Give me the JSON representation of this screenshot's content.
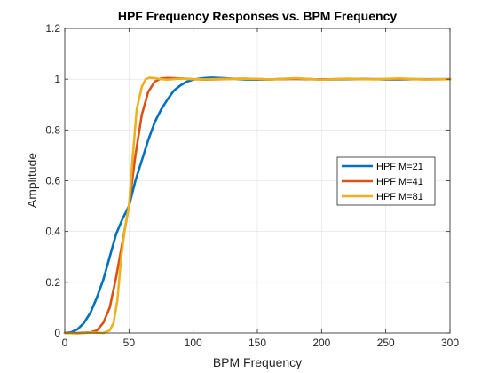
{
  "chart_data": {
    "type": "line",
    "title": "HPF Frequency Responses vs. BPM Frequency",
    "xlabel": "BPM Frequency",
    "ylabel": "Amplitude",
    "xlim": [
      0,
      300
    ],
    "ylim": [
      0,
      1.2
    ],
    "xticks": [
      0,
      50,
      100,
      150,
      200,
      250,
      300
    ],
    "xtick_labels": [
      "0",
      "50",
      "100",
      "150",
      "200",
      "250",
      "300"
    ],
    "yticks": [
      0,
      0.2,
      0.4,
      0.6,
      0.8,
      1.0,
      1.2
    ],
    "ytick_labels": [
      "0",
      "0.2",
      "0.4",
      "0.6",
      "0.8",
      "1",
      "1.2"
    ],
    "grid": true,
    "legend_position": "right",
    "series": [
      {
        "name": "HPF M=21",
        "color": "#0072BD",
        "x": [
          0,
          5,
          10,
          15,
          20,
          25,
          30,
          35,
          40,
          45,
          50,
          55,
          60,
          65,
          70,
          75,
          80,
          85,
          90,
          95,
          100,
          105,
          110,
          115,
          120,
          130,
          140,
          150,
          160,
          170,
          180,
          190,
          200,
          210,
          220,
          230,
          240,
          250,
          260,
          270,
          280,
          290,
          300
        ],
        "y": [
          0.0,
          0.003,
          0.015,
          0.04,
          0.08,
          0.14,
          0.21,
          0.3,
          0.39,
          0.45,
          0.5,
          0.6,
          0.68,
          0.76,
          0.83,
          0.88,
          0.92,
          0.955,
          0.975,
          0.99,
          0.998,
          1.002,
          1.005,
          1.006,
          1.005,
          1.002,
          0.999,
          0.998,
          0.999,
          1.001,
          1.001,
          1.0,
          0.999,
          0.999,
          1.0,
          1.001,
          1.0,
          0.999,
          0.999,
          1.0,
          1.0,
          1.0,
          1.0
        ]
      },
      {
        "name": "HPF M=41",
        "color": "#D95319",
        "x": [
          0,
          10,
          20,
          25,
          30,
          35,
          40,
          45,
          50,
          55,
          60,
          65,
          70,
          75,
          80,
          90,
          100,
          110,
          120,
          140,
          160,
          180,
          200,
          220,
          240,
          260,
          280,
          300
        ],
        "y": [
          0.0,
          0.0,
          0.003,
          0.01,
          0.04,
          0.1,
          0.22,
          0.36,
          0.5,
          0.7,
          0.86,
          0.95,
          0.99,
          1.003,
          1.005,
          1.003,
          1.0,
          0.998,
          1.0,
          1.002,
          0.999,
          1.001,
          0.999,
          1.001,
          1.0,
          1.001,
          0.999,
          1.0
        ]
      },
      {
        "name": "HPF M=81",
        "color": "#EDB120",
        "x": [
          0,
          10,
          20,
          30,
          35,
          38,
          41,
          44,
          47,
          50,
          53,
          56,
          60,
          63,
          66,
          70,
          75,
          80,
          90,
          100,
          110,
          120,
          140,
          160,
          180,
          200,
          220,
          240,
          260,
          280,
          300
        ],
        "y": [
          0.0,
          -0.002,
          0.002,
          0.0,
          0.01,
          0.04,
          0.13,
          0.3,
          0.42,
          0.5,
          0.7,
          0.88,
          0.97,
          1.0,
          1.006,
          1.004,
          1.0,
          0.998,
          1.002,
          1.0,
          0.999,
          1.001,
          1.002,
          0.999,
          1.004,
          0.998,
          1.002,
          0.999,
          1.003,
          0.999,
          1.0
        ]
      }
    ]
  }
}
